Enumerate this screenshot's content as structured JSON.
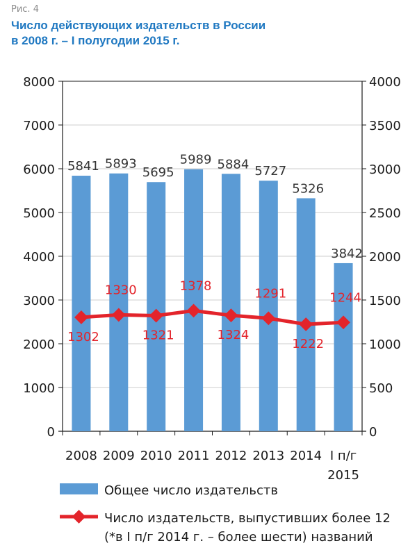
{
  "figure_label": "Рис. 4",
  "title_line1": "Число действующих издательств в России",
  "title_line2": "в 2008 г. – I полугодии 2015 г.",
  "colors": {
    "bar": "#5b9bd5",
    "line": "#e3242b",
    "title": "#1f78c1"
  },
  "chart_data": {
    "type": "bar",
    "categories": [
      {
        "line1": "2008",
        "line2": ""
      },
      {
        "line1": "2009",
        "line2": ""
      },
      {
        "line1": "2010",
        "line2": ""
      },
      {
        "line1": "2011",
        "line2": ""
      },
      {
        "line1": "2012",
        "line2": ""
      },
      {
        "line1": "2013",
        "line2": ""
      },
      {
        "line1": "2014",
        "line2": ""
      },
      {
        "line1": "I п/г",
        "line2": "2015"
      }
    ],
    "series": [
      {
        "name": "Общее число издательств",
        "type": "bar",
        "axis": "left",
        "values": [
          5841,
          5893,
          5695,
          5989,
          5884,
          5727,
          5326,
          3842
        ]
      },
      {
        "name": "Число издательств, выпустивших более 12",
        "name_line2": "(*в I п/г 2014 г. – более шести) названий",
        "type": "line",
        "axis": "right",
        "values": [
          1302,
          1330,
          1321,
          1378,
          1324,
          1291,
          1222,
          1244
        ]
      }
    ],
    "y_left": {
      "min": 0,
      "max": 8000,
      "ticks": [
        0,
        1000,
        2000,
        3000,
        4000,
        5000,
        6000,
        7000,
        8000
      ]
    },
    "y_right": {
      "min": 0,
      "max": 4000,
      "ticks": [
        0,
        500,
        1000,
        1500,
        2000,
        2500,
        3000,
        3500,
        4000
      ]
    },
    "grid": "horizontal",
    "legend": "bottom"
  }
}
